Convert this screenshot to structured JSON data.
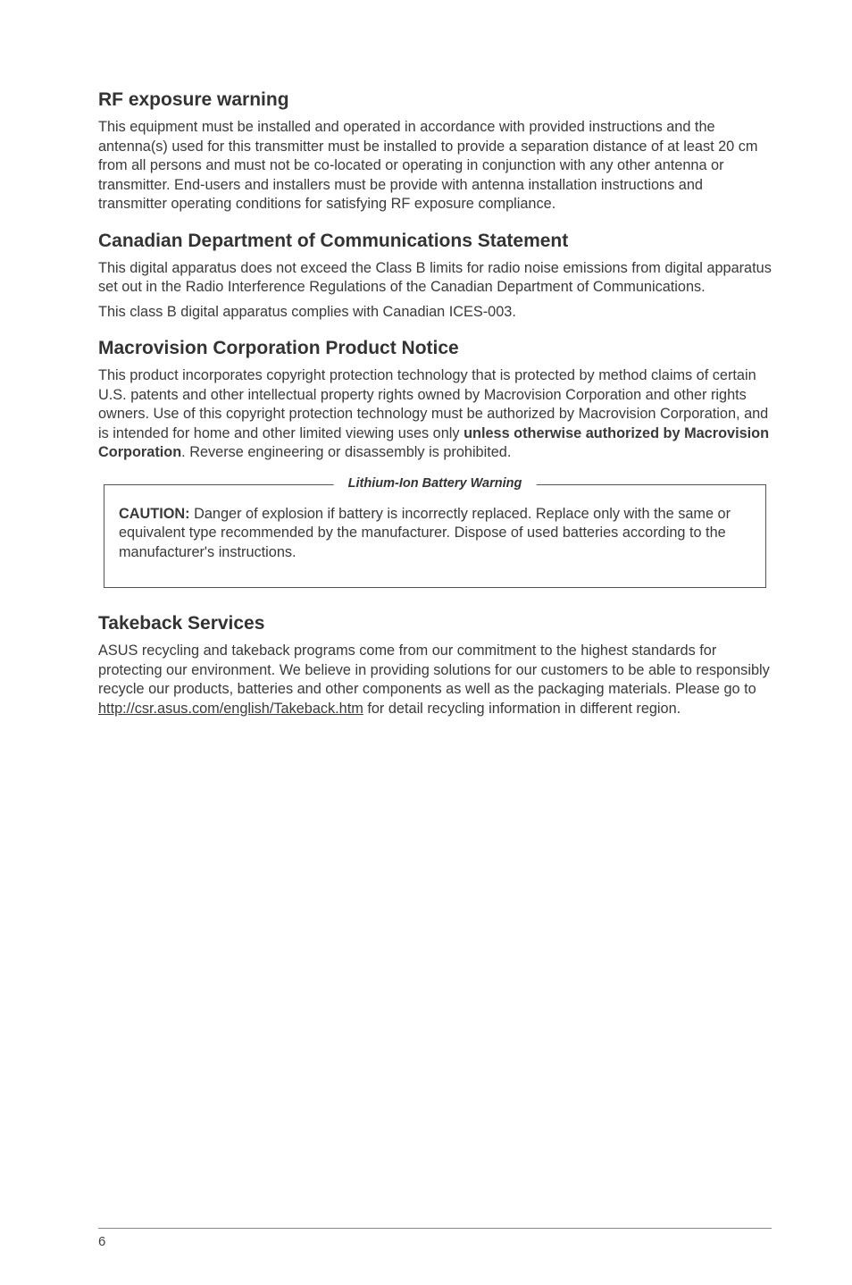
{
  "sections": {
    "rf": {
      "heading": "RF exposure warning",
      "body": "This equipment must be installed and operated in accordance with provided instructions and the antenna(s) used for this transmitter must be installed to provide a separation distance of at least 20 cm from all persons and must not be co-located or operating in conjunction with any other antenna or transmitter. End-users and installers must be provide with antenna installation instructions and transmitter operating conditions for satisfying RF exposure compliance."
    },
    "canadian": {
      "heading": "Canadian Department of Communications Statement",
      "body1": "This digital apparatus does not exceed the Class B limits for radio noise emissions from digital apparatus set out in the Radio Interference Regulations of the Canadian Department of Communications.",
      "body2": "This class B digital apparatus complies with Canadian ICES-003."
    },
    "macrovision": {
      "heading": "Macrovision Corporation Product Notice",
      "body_pre": "This product incorporates copyright protection technology that is protected by method claims of certain U.S. patents and other intellectual property rights owned by Macrovision Corporation and other rights owners. Use of this copyright protection technology must be authorized by Macrovision Corporation, and is intended for home and other limited viewing uses only ",
      "body_bold": "unless otherwise authorized by Macrovision Corporation",
      "body_post": ". Reverse engineering or disassembly is prohibited."
    },
    "warning": {
      "title": "Lithium-Ion Battery Warning",
      "caution_label": "CAUTION:",
      "caution_text": " Danger of explosion if battery is incorrectly replaced. Replace only with the same or equivalent type recommended by the manufacturer. Dispose of used batteries according to the manufacturer's instructions."
    },
    "takeback": {
      "heading": "Takeback Services",
      "body_pre": "ASUS recycling and takeback programs come from our commitment to the highest standards for protecting our environment. We believe in providing solutions for our customers to be able to responsibly recycle our products, batteries and other components as well as the packaging materials. Please go to ",
      "link": "http://csr.asus.com/english/Takeback.htm",
      "body_post": " for detail recycling information in different region."
    }
  },
  "page_number": "6"
}
